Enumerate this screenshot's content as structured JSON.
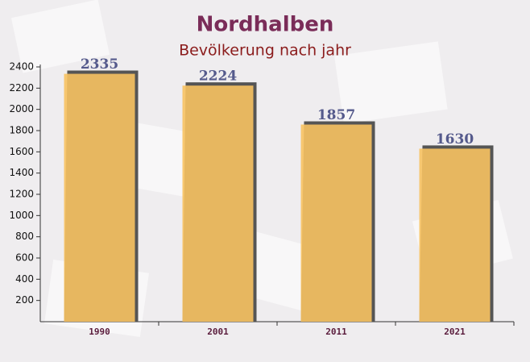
{
  "chart_data": {
    "type": "bar",
    "title": "Nordhalben",
    "subtitle": "Bevölkerung nach jahr",
    "categories": [
      "1990",
      "2001",
      "2011",
      "2021"
    ],
    "values": [
      2335,
      2224,
      1857,
      1630
    ],
    "color": "#f7c262",
    "label_color": "#555a8c",
    "ylim": [
      0,
      2400
    ],
    "yticks": [
      200,
      400,
      600,
      800,
      1000,
      1200,
      1400,
      1600,
      1800,
      2000,
      2200,
      2400
    ]
  }
}
